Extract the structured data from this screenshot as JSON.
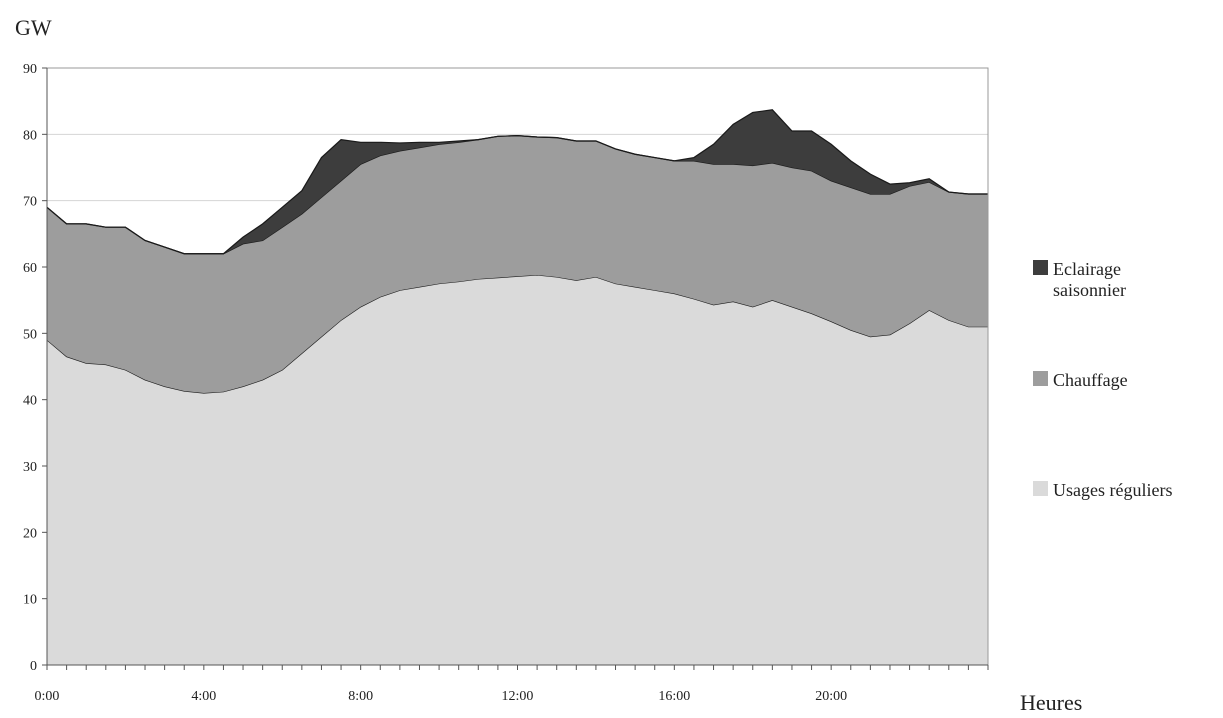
{
  "chart_data": {
    "type": "area",
    "stacked": true,
    "ylabel": "GW",
    "xlabel": "Heures",
    "ylim": [
      0,
      90
    ],
    "y_ticks": [
      0,
      10,
      20,
      30,
      40,
      50,
      60,
      70,
      80,
      90
    ],
    "x_tick_labels": [
      "0:00",
      "4:00",
      "8:00",
      "12:00",
      "16:00",
      "20:00"
    ],
    "x_tick_hours": [
      0,
      4,
      8,
      12,
      16,
      20
    ],
    "grid": "horizontal",
    "legend_position": "right",
    "x_hours": [
      0,
      0.5,
      1,
      1.5,
      2,
      2.5,
      3,
      3.5,
      4,
      4.5,
      5,
      5.5,
      6,
      6.5,
      7,
      7.5,
      8,
      8.5,
      9,
      9.5,
      10,
      10.5,
      11,
      11.5,
      12,
      12.5,
      13,
      13.5,
      14,
      14.5,
      15,
      15.5,
      16,
      16.5,
      17,
      17.5,
      18,
      18.5,
      19,
      19.5,
      20,
      20.5,
      21,
      21.5,
      22,
      22.5,
      23,
      23.5
    ],
    "series": [
      {
        "name": "Usages réguliers",
        "color": "#dadada",
        "values": [
          49,
          46.5,
          45.5,
          45.3,
          44.5,
          43,
          42,
          41.3,
          41,
          41.2,
          42,
          43,
          44.5,
          47,
          49.5,
          52,
          54,
          55.5,
          56.5,
          57,
          57.5,
          57.8,
          58.2,
          58.4,
          58.6,
          58.8,
          58.5,
          58,
          58.5,
          57.5,
          57,
          56.5,
          56,
          55.2,
          54.3,
          54.8,
          54,
          55,
          54,
          53,
          51.8,
          50.5,
          49.5,
          49.8,
          51.5,
          53.5,
          52,
          51
        ]
      },
      {
        "name": "Chauffage",
        "color": "#9d9d9d",
        "values": [
          20,
          20,
          21,
          20.7,
          21.5,
          21,
          21,
          20.7,
          21,
          20.8,
          21.5,
          21,
          21.5,
          21,
          21,
          21,
          21.5,
          21.3,
          21,
          21,
          21,
          21,
          21,
          21.3,
          21.2,
          20.8,
          21,
          21,
          20.5,
          20.3,
          20,
          20,
          20,
          20.8,
          21.2,
          20.7,
          21.3,
          20.7,
          21,
          21.5,
          21.2,
          21.5,
          21.5,
          21.2,
          20.7,
          19.3,
          19.3,
          20
        ]
      },
      {
        "name": "Eclairage saisonnier",
        "color": "#3d3d3d",
        "values": [
          0,
          0,
          0,
          0,
          0,
          0,
          0,
          0,
          0,
          0,
          1,
          2.5,
          3,
          3.5,
          6,
          6.2,
          3.3,
          2,
          1.2,
          0.8,
          0.3,
          0.2,
          0,
          0,
          0,
          0,
          0,
          0,
          0,
          0,
          0,
          0,
          0,
          0.5,
          3,
          6,
          8,
          8,
          5.5,
          6,
          5.5,
          4,
          3,
          1.5,
          0.5,
          0.5,
          0,
          0
        ]
      }
    ],
    "legend_order": [
      "Eclairage saisonnier",
      "Chauffage",
      "Usages réguliers"
    ],
    "legend_lines": {
      "Eclairage saisonnier": [
        "Eclairage",
        "saisonnier"
      ],
      "Chauffage": [
        "Chauffage"
      ],
      "Usages réguliers": [
        "Usages réguliers"
      ]
    }
  }
}
